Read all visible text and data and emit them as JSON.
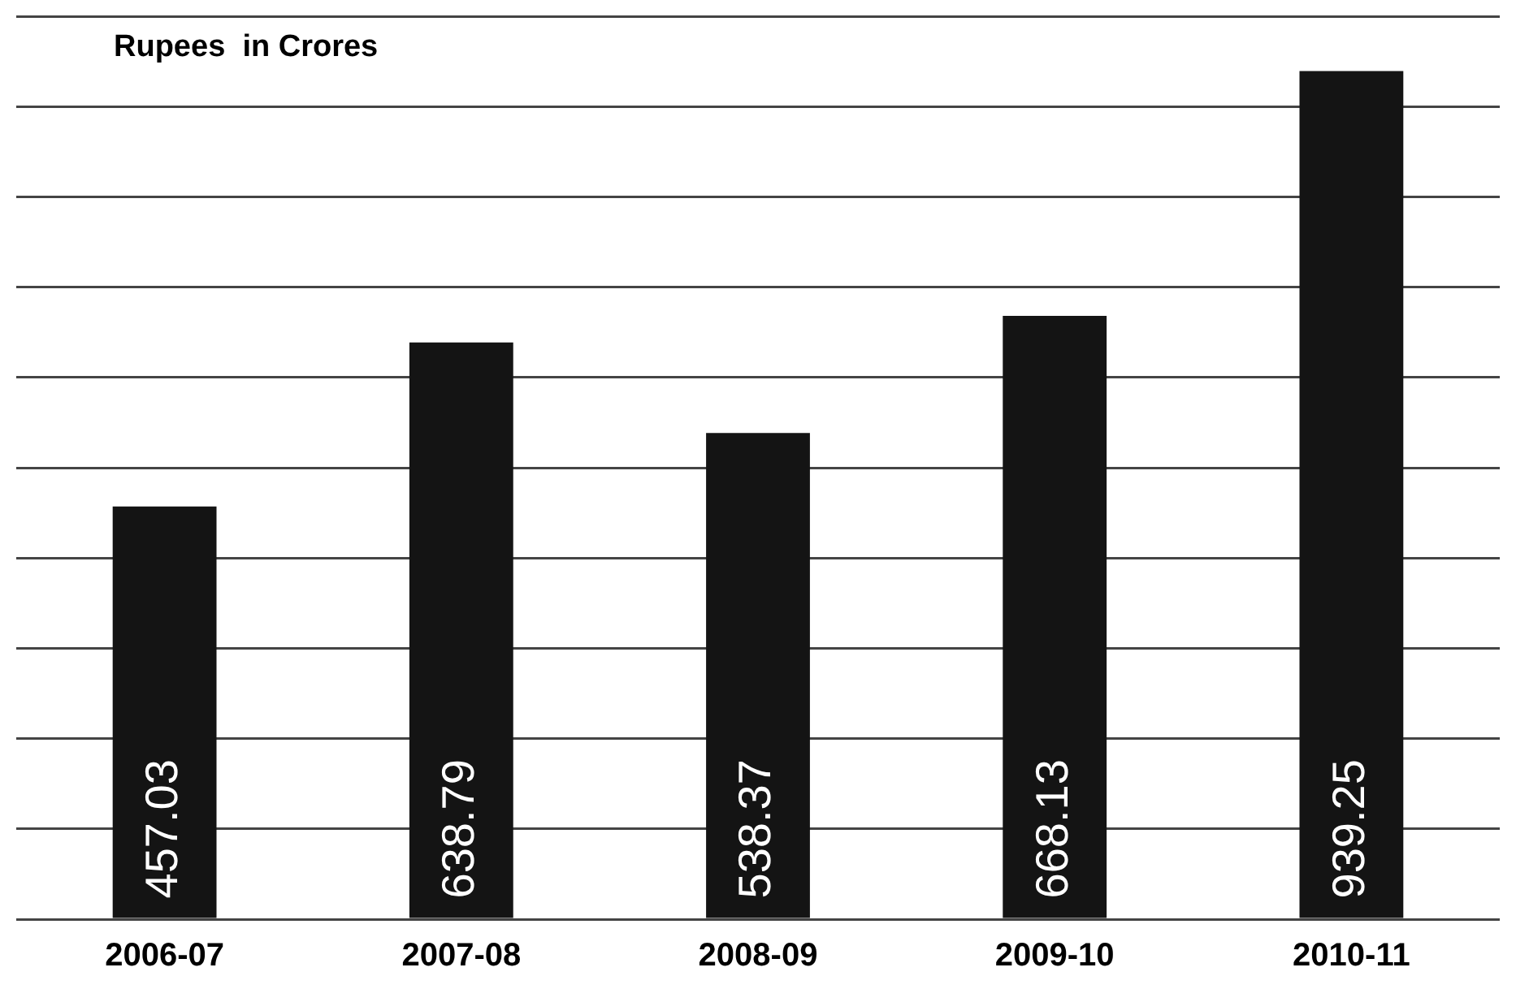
{
  "chart_data": {
    "type": "bar",
    "ylabel": "Rupees  in Crores",
    "categories": [
      "2006-07",
      "2007-08",
      "2008-09",
      "2009-10",
      "2010-11"
    ],
    "values": [
      457.03,
      638.79,
      538.37,
      668.13,
      939.25
    ],
    "color": "#141414",
    "data_labels": true,
    "grid": "y",
    "tick_labels": "x",
    "legend": false
  }
}
